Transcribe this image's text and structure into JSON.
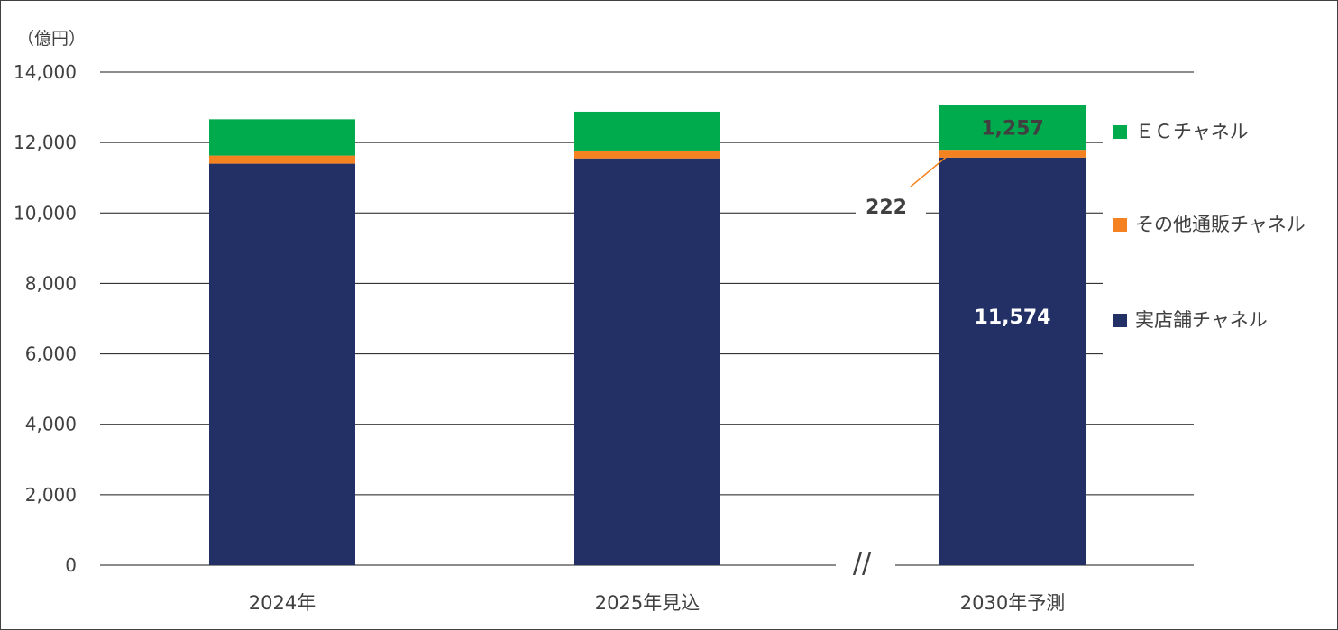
{
  "chart_data": {
    "type": "bar",
    "stacked": true,
    "unit_label": "（億円）",
    "categories": [
      "2024年",
      "2025年見込",
      "2030年予測"
    ],
    "series": [
      {
        "name": "実店舗チャネル",
        "color": "#223066",
        "values": [
          11400,
          11550,
          11574
        ]
      },
      {
        "name": "その他通販チャネル",
        "color": "#f58220",
        "values": [
          230,
          225,
          222
        ]
      },
      {
        "name": "ＥＣチャネル",
        "color": "#00ab4e",
        "values": [
          1030,
          1100,
          1257
        ]
      }
    ],
    "ylim": [
      0,
      14000
    ],
    "yticks": [
      "0",
      "2,000",
      "4,000",
      "6,000",
      "8,000",
      "10,000",
      "12,000",
      "14,000"
    ],
    "ytick_values": [
      0,
      2000,
      4000,
      6000,
      8000,
      10000,
      12000,
      14000
    ],
    "grid": true,
    "legend_position": "right",
    "data_labels": {
      "ec_2030": "1,257",
      "other_2030": "222",
      "store_2030": "11,574"
    },
    "axis_break_mark": "//"
  }
}
